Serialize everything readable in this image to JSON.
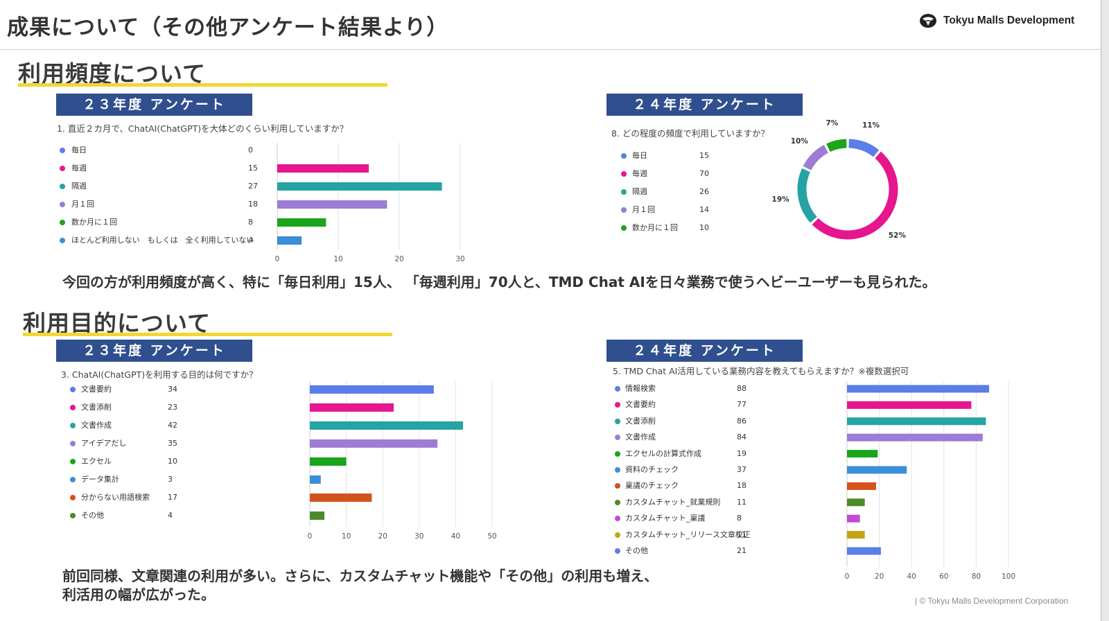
{
  "header": {
    "title": "成果について（その他アンケート結果より）",
    "logo_text": "Tokyu Malls Development"
  },
  "section1": {
    "title": "利用頻度について",
    "summary": "今回の方が利用頻度が高く、特に「毎日利用」15人、 「毎週利用」70人と、TMD Chat AIを日々業務で使うヘビーユーザーも見られた。"
  },
  "section2": {
    "title": "利用目的について",
    "summary_line1": "前回同様、文章関連の利用が多い。さらに、カスタムチャット機能や「その他」の利用も増え、",
    "summary_line2": "利活用の幅が広がった。"
  },
  "footer": {
    "copyright": "| © Tokyu Malls Development Corporation"
  },
  "colors": {
    "blue": "#5b7de8",
    "pink": "#e6168f",
    "teal": "#26a3a3",
    "purple": "#9d7cd5",
    "green": "#1aa51a",
    "lightblue": "#3a8fd8",
    "orange": "#d4531c",
    "darkgreen": "#4e8a2a",
    "magenta": "#c04ccf",
    "olive": "#c2a416",
    "badge": "#2f4f8f",
    "underline": "#f2d732"
  },
  "chart_data": [
    {
      "id": "freq23",
      "type": "bar",
      "badge": "２３年度 アンケート",
      "title": "1. 直近２カ月で、ChatAI(ChatGPT)を大体どのくらい利用していますか？",
      "categories": [
        "毎日",
        "毎週",
        "隔週",
        "月１回",
        "数か月に１回",
        "ほとんど利用しない　もしくは　全く利用していない"
      ],
      "values": [
        0,
        15,
        27,
        18,
        8,
        4
      ],
      "colors": [
        "#5b7de8",
        "#e6168f",
        "#26a3a3",
        "#9d7cd5",
        "#1aa51a",
        "#3a8fd8"
      ],
      "xlim": [
        0,
        30
      ],
      "xticks": [
        0,
        10,
        20,
        30
      ],
      "grid": true
    },
    {
      "id": "freq24",
      "type": "pie",
      "badge": "２４年度 アンケート",
      "title": "8. どの程度の頻度で利用していますか？",
      "categories": [
        "毎日",
        "毎週",
        "隔週",
        "月１回",
        "数か月に１回"
      ],
      "values": [
        15,
        70,
        26,
        14,
        10
      ],
      "percent_labels": [
        "11%",
        "52%",
        "19%",
        "10%",
        "7%"
      ],
      "colors": [
        "#5b7de8",
        "#e6168f",
        "#26a3a3",
        "#9d7cd5",
        "#1aa51a"
      ],
      "donut": true
    },
    {
      "id": "purpose23",
      "type": "bar",
      "badge": "２３年度 アンケート",
      "title": "3. ChatAI(ChatGPT)を利用する目的は何ですか？",
      "categories": [
        "文書要約",
        "文書添削",
        "文書作成",
        "アイデアだし",
        "エクセル",
        "データ集計",
        "分からない用語検索",
        "その他"
      ],
      "values": [
        34,
        23,
        42,
        35,
        10,
        3,
        17,
        4
      ],
      "colors": [
        "#5b7de8",
        "#e6168f",
        "#26a3a3",
        "#9d7cd5",
        "#1aa51a",
        "#3a8fd8",
        "#d4531c",
        "#4e8a2a"
      ],
      "xlim": [
        0,
        50
      ],
      "xticks": [
        0,
        10,
        20,
        30,
        40,
        50
      ],
      "grid": true
    },
    {
      "id": "purpose24",
      "type": "bar",
      "badge": "２４年度 アンケート",
      "title": "5. TMD Chat AI活用している業務内容を教えてもらえますか？※複数選択可",
      "categories": [
        "情報検索",
        "文書要約",
        "文書添削",
        "文書作成",
        "エクセルの計算式作成",
        "資料のチェック",
        "稟議のチェック",
        "カスタムチャット_就業規則",
        "カスタムチャット_稟議",
        "カスタムチャット_リリース文章校正",
        "その他"
      ],
      "values": [
        88,
        77,
        86,
        84,
        19,
        37,
        18,
        11,
        8,
        11,
        21
      ],
      "colors": [
        "#5b7de8",
        "#e6168f",
        "#26a3a3",
        "#9d7cd5",
        "#1aa51a",
        "#3a8fd8",
        "#d4531c",
        "#4e8a2a",
        "#c04ccf",
        "#c2a416",
        "#5b7de8"
      ],
      "xlim": [
        0,
        100
      ],
      "xticks": [
        0,
        20,
        40,
        60,
        80,
        100
      ],
      "grid": true
    }
  ]
}
